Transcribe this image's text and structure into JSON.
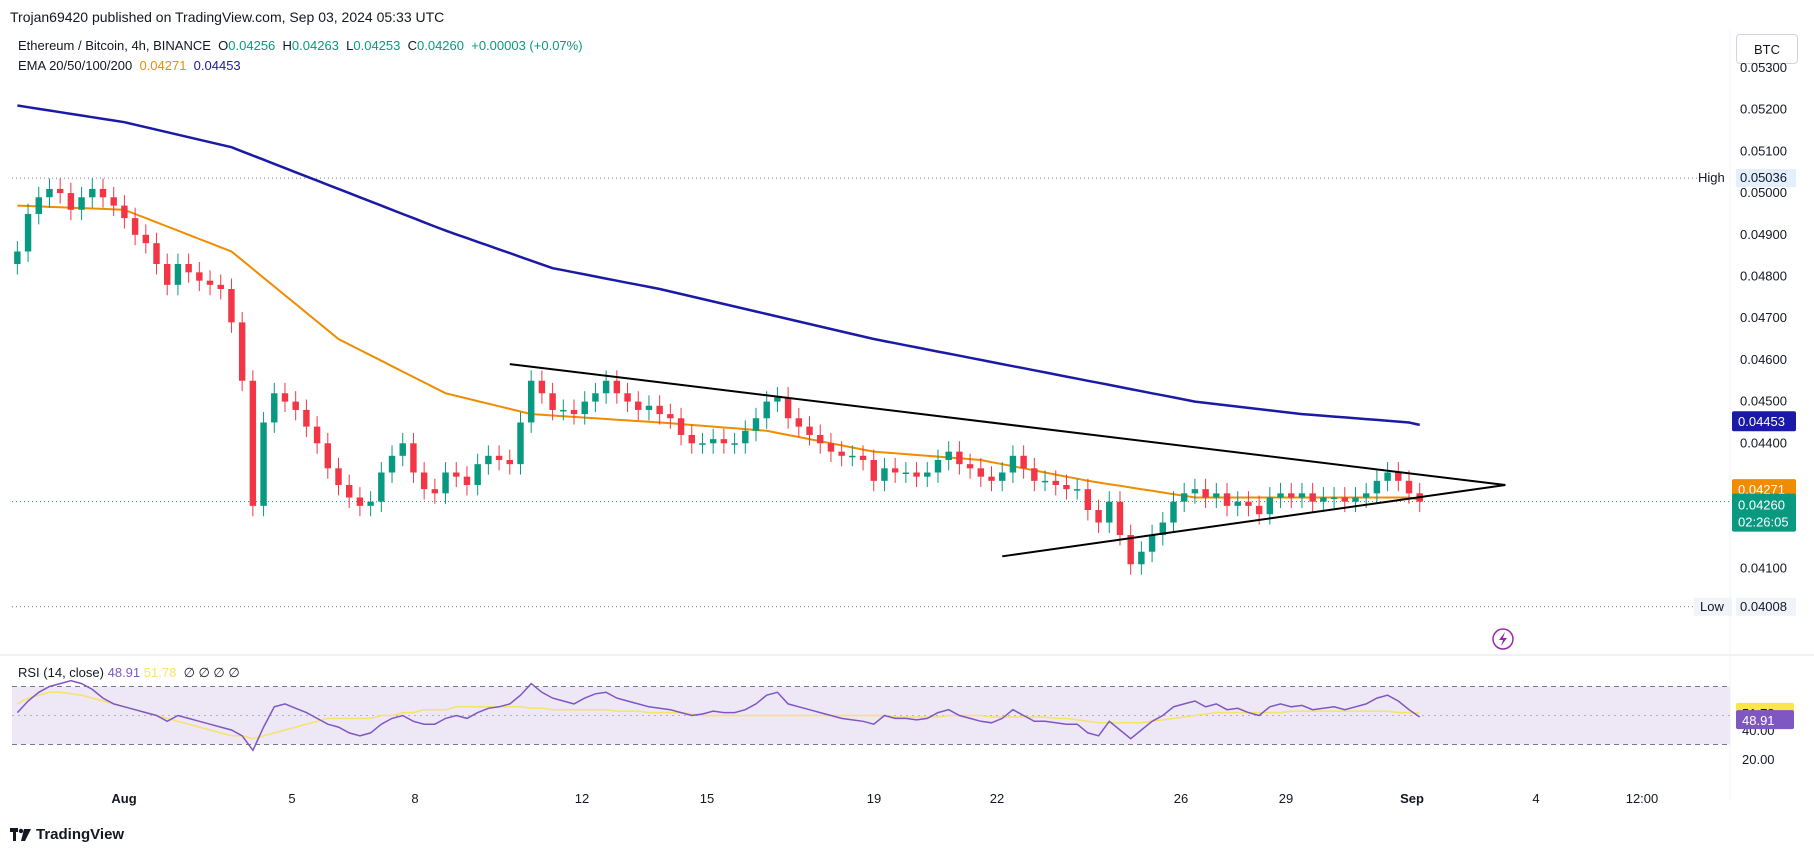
{
  "header": {
    "published": "Trojan69420 published on TradingView.com, Sep 03, 2024 05:33 UTC"
  },
  "legend": {
    "symbol": "Ethereum / Bitcoin, 4h, BINANCE",
    "o_label": "O",
    "o_value": "0.04256",
    "h_label": "H",
    "h_value": "0.04263",
    "l_label": "L",
    "l_value": "0.04253",
    "c_label": "C",
    "c_value": "0.04260",
    "change": "+0.00003 (+0.07%)",
    "ema_label": "EMA 20/50/100/200",
    "ema_value_1": "0.04271",
    "ema_value_2": "0.04453"
  },
  "currency_button": "BTC",
  "rsi_legend": {
    "label": "RSI (14, close)",
    "value": "48.91",
    "ma_value": "51.78",
    "placeholders": "∅ ∅ ∅ ∅"
  },
  "branding": "TradingView",
  "colors": {
    "up": "#089981",
    "down": "#f23645",
    "ema_short": "#f08c00",
    "ema_long": "#1a1aa6",
    "trendline": "#000000",
    "rsi_line": "#7e57c2",
    "rsi_ma": "#f7e26b",
    "rsi_band": "#ede7f6"
  },
  "chart_data": {
    "type": "candlestick",
    "title": "Ethereum / Bitcoin, 4h, BINANCE",
    "price_axis": {
      "ticks": [
        "0.05300",
        "0.05200",
        "0.05100",
        "0.05000",
        "0.04900",
        "0.04800",
        "0.04700",
        "0.04600",
        "0.04500",
        "0.04400",
        "0.04100"
      ],
      "range": [
        0.0392,
        0.0534
      ]
    },
    "time_axis": {
      "labels": [
        "Aug",
        "5",
        "8",
        "12",
        "15",
        "19",
        "22",
        "26",
        "29",
        "Sep",
        "4",
        "12:00"
      ]
    },
    "high_marker": {
      "label": "High",
      "value": "0.05036"
    },
    "low_marker": {
      "label": "Low",
      "value": "0.04008"
    },
    "last_price": {
      "value": "0.04260",
      "countdown": "02:26:05"
    },
    "ema_labels": {
      "ema_short": "0.04271",
      "ema_long": "0.04453"
    },
    "close_series": [
      0.0486,
      0.0495,
      0.0499,
      0.0501,
      0.05,
      0.0496,
      0.0499,
      0.0501,
      0.0499,
      0.0497,
      0.0494,
      0.049,
      0.0488,
      0.0483,
      0.0478,
      0.0483,
      0.0481,
      0.0479,
      0.0478,
      0.0477,
      0.0469,
      0.0455,
      0.0425,
      0.0445,
      0.0452,
      0.045,
      0.0448,
      0.0444,
      0.044,
      0.0434,
      0.043,
      0.0427,
      0.0425,
      0.0426,
      0.0433,
      0.0437,
      0.044,
      0.0433,
      0.0429,
      0.0428,
      0.0433,
      0.0432,
      0.043,
      0.0435,
      0.0437,
      0.0436,
      0.0435,
      0.0445,
      0.0455,
      0.0452,
      0.0448,
      0.0448,
      0.0447,
      0.045,
      0.0452,
      0.0455,
      0.0452,
      0.045,
      0.0448,
      0.0449,
      0.0447,
      0.0446,
      0.0442,
      0.044,
      0.044,
      0.0441,
      0.044,
      0.044,
      0.0443,
      0.0446,
      0.045,
      0.0451,
      0.0446,
      0.0444,
      0.0442,
      0.044,
      0.0438,
      0.0437,
      0.0437,
      0.0436,
      0.0431,
      0.0434,
      0.0433,
      0.0433,
      0.0432,
      0.0433,
      0.0436,
      0.0438,
      0.0435,
      0.0434,
      0.0432,
      0.0431,
      0.0433,
      0.0437,
      0.0434,
      0.0431,
      0.0431,
      0.043,
      0.0429,
      0.0429,
      0.0424,
      0.0421,
      0.0426,
      0.0418,
      0.0411,
      0.0414,
      0.0418,
      0.0421,
      0.0426,
      0.0428,
      0.0429,
      0.0427,
      0.0428,
      0.0425,
      0.0426,
      0.0425,
      0.0423,
      0.0427,
      0.0428,
      0.0427,
      0.0428,
      0.0426,
      0.0427,
      0.0427,
      0.0426,
      0.0427,
      0.0428,
      0.0431,
      0.0433,
      0.0431,
      0.0428,
      0.0426
    ],
    "ema_short_anchors": [
      [
        0,
        0.0497
      ],
      [
        10,
        0.0496
      ],
      [
        20,
        0.0486
      ],
      [
        30,
        0.0465
      ],
      [
        40,
        0.0452
      ],
      [
        48,
        0.0447
      ],
      [
        60,
        0.0445
      ],
      [
        70,
        0.0443
      ],
      [
        80,
        0.0438
      ],
      [
        90,
        0.0436
      ],
      [
        100,
        0.0431
      ],
      [
        110,
        0.0427
      ],
      [
        120,
        0.0427
      ],
      [
        130,
        0.0427
      ]
    ],
    "ema_long_anchors": [
      [
        0,
        0.0521
      ],
      [
        10,
        0.0517
      ],
      [
        20,
        0.0511
      ],
      [
        30,
        0.0501
      ],
      [
        40,
        0.0491
      ],
      [
        50,
        0.0482
      ],
      [
        60,
        0.0477
      ],
      [
        70,
        0.0471
      ],
      [
        80,
        0.0465
      ],
      [
        90,
        0.046
      ],
      [
        100,
        0.0455
      ],
      [
        110,
        0.045
      ],
      [
        120,
        0.0447
      ],
      [
        130,
        0.0445
      ]
    ],
    "triangle_upper": [
      [
        46,
        0.0459
      ],
      [
        139,
        0.043
      ]
    ],
    "triangle_lower": [
      [
        92,
        0.04129
      ],
      [
        139,
        0.043
      ]
    ],
    "rsi": {
      "ticks": [
        "40.00",
        "20.00"
      ],
      "upper_band": 70,
      "lower_band": 30,
      "values": [
        52,
        60,
        66,
        70,
        72,
        74,
        72,
        68,
        62,
        58,
        56,
        54,
        52,
        50,
        46,
        50,
        48,
        46,
        44,
        42,
        40,
        36,
        26,
        42,
        56,
        58,
        55,
        52,
        48,
        44,
        42,
        38,
        36,
        38,
        44,
        48,
        50,
        46,
        44,
        44,
        48,
        50,
        48,
        52,
        55,
        56,
        58,
        64,
        72,
        66,
        62,
        60,
        58,
        62,
        65,
        66,
        62,
        60,
        58,
        56,
        55,
        54,
        52,
        50,
        51,
        53,
        52,
        52,
        54,
        58,
        64,
        66,
        58,
        56,
        54,
        52,
        50,
        48,
        47,
        46,
        44,
        50,
        48,
        48,
        47,
        48,
        52,
        54,
        50,
        48,
        46,
        45,
        48,
        54,
        50,
        46,
        46,
        45,
        44,
        44,
        38,
        36,
        46,
        40,
        34,
        40,
        46,
        50,
        56,
        58,
        60,
        56,
        58,
        54,
        55,
        52,
        50,
        56,
        58,
        56,
        57,
        54,
        55,
        56,
        54,
        56,
        58,
        62,
        64,
        60,
        54,
        49
      ],
      "ma_values": [
        58,
        62,
        64,
        66,
        66,
        65,
        64,
        62,
        60,
        58,
        56,
        54,
        52,
        50,
        48,
        46,
        44,
        42,
        40,
        38,
        36,
        36,
        34,
        36,
        38,
        40,
        42,
        44,
        46,
        48,
        48,
        48,
        48,
        48,
        50,
        50,
        52,
        52,
        54,
        54,
        54,
        56,
        56,
        56,
        56,
        56,
        56,
        56,
        55,
        55,
        54,
        54,
        54,
        54,
        54,
        54,
        53,
        53,
        53,
        52,
        52,
        52,
        52,
        51,
        50,
        50,
        50,
        50,
        50,
        50,
        50,
        50,
        50,
        50,
        50,
        50,
        50,
        50,
        50,
        50,
        50,
        50,
        49,
        49,
        49,
        49,
        49,
        50,
        50,
        50,
        50,
        49,
        49,
        49,
        49,
        49,
        49,
        48,
        48,
        47,
        46,
        45,
        45,
        45,
        45,
        45,
        46,
        47,
        48,
        49,
        50,
        51,
        52,
        52,
        52,
        52,
        52,
        52,
        52,
        53,
        53,
        53,
        53,
        53,
        53,
        53,
        53,
        53,
        53,
        52,
        52,
        51.78
      ]
    }
  }
}
